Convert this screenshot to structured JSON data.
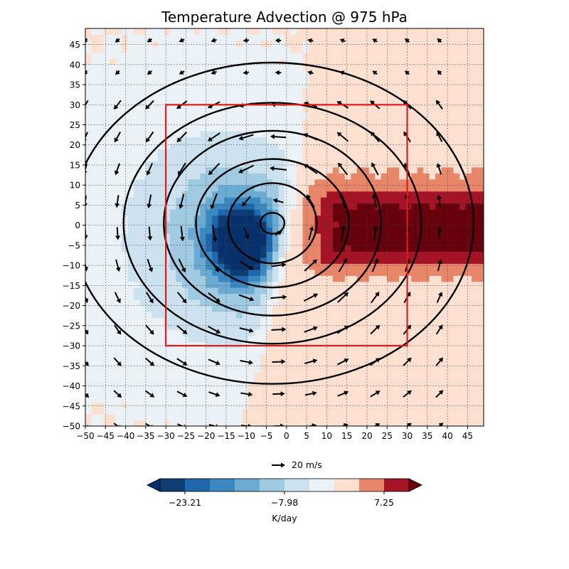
{
  "chart_data": {
    "type": "heatmap",
    "title": "Temperature Advection @ 975 hPa",
    "xlim": [
      -50,
      49
    ],
    "ylim": [
      -50,
      49
    ],
    "xticks": [
      -50,
      -45,
      -40,
      -35,
      -30,
      -25,
      -20,
      -15,
      -10,
      -5,
      0,
      5,
      10,
      15,
      20,
      25,
      30,
      35,
      40,
      45
    ],
    "yticks": [
      -50,
      -45,
      -40,
      -35,
      -30,
      -25,
      -20,
      -15,
      -10,
      -5,
      0,
      5,
      10,
      15,
      20,
      25,
      30,
      35,
      40,
      45
    ],
    "xtick_labels": [
      "−50",
      "−45",
      "−40",
      "−35",
      "−30",
      "−25",
      "−20",
      "−15",
      "−10",
      "−5",
      "0",
      "5",
      "10",
      "15",
      "20",
      "25",
      "30",
      "35",
      "40",
      "45"
    ],
    "ytick_labels": [
      "−50",
      "−45",
      "−40",
      "−35",
      "−30",
      "−25",
      "−20",
      "−15",
      "−10",
      "−5",
      "0",
      "5",
      "10",
      "15",
      "20",
      "25",
      "30",
      "35",
      "40",
      "45"
    ],
    "grid": true,
    "box": {
      "x": [
        -30,
        30
      ],
      "y": [
        -30,
        30
      ],
      "color": "#e31a1c"
    },
    "contours": {
      "center": [
        -3.5,
        0.5
      ],
      "radii": [
        [
          3,
          2.6
        ],
        [
          11,
          10
        ],
        [
          19,
          16
        ],
        [
          27,
          23
        ],
        [
          37,
          30
        ],
        [
          50,
          40
        ]
      ],
      "color": "#000000"
    },
    "warm_sector": {
      "x_edge": 0,
      "strong_core_x": 8,
      "strong_core_y": [
        -10,
        8
      ],
      "peak_value": 8.0
    },
    "cold_sector": {
      "core": [
        -11,
        -4
      ],
      "peak_value": -27.0
    },
    "vector_key": {
      "label": "20 m/s"
    },
    "colorbar": {
      "levels": [
        -26.8,
        -23.21,
        -19.5,
        -15.7,
        -11.9,
        -7.98,
        -4.2,
        -0.4,
        3.4,
        7.25,
        11.0
      ],
      "colors": [
        "#0e3d74",
        "#1f66ad",
        "#3b88c0",
        "#6aaad3",
        "#9fcae2",
        "#cde2ef",
        "#eaf2f7",
        "#fde0d0",
        "#e8866a",
        "#a51426"
      ],
      "extend_colors": [
        "#08306b",
        "#67000d"
      ],
      "tick_values": [
        -23.21,
        -7.98,
        7.25
      ],
      "tick_labels": [
        "−23.21",
        "−7.98",
        "7.25"
      ],
      "label": "K/day"
    }
  }
}
